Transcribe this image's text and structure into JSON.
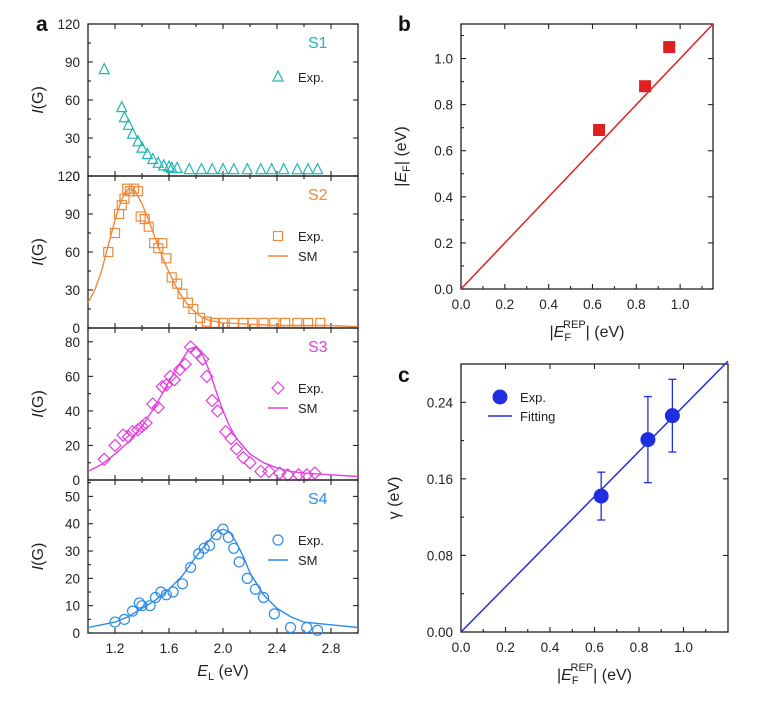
{
  "chart_data": [
    {
      "id": "a",
      "type": "scatter",
      "panel_label": "a",
      "xlabel": {
        "main": "E",
        "sub": "L",
        "unit": " (eV)"
      },
      "xlim": [
        1.0,
        3.0
      ],
      "xticks": [
        "1.2",
        "1.6",
        "2.0",
        "2.4",
        "2.8"
      ],
      "subplots": [
        {
          "name": "S1",
          "color": "#1fb6b6",
          "marker": "triangle",
          "ylabel": {
            "main": "I",
            "unit": "(G)"
          },
          "ylim": [
            0,
            120
          ],
          "yticks": [
            "0",
            "30",
            "60",
            "90",
            "120"
          ],
          "legend": [
            "Exp."
          ],
          "points": [
            [
              1.12,
              84
            ],
            [
              1.25,
              54
            ],
            [
              1.27,
              46
            ],
            [
              1.3,
              40
            ],
            [
              1.33,
              33
            ],
            [
              1.37,
              27
            ],
            [
              1.4,
              22
            ],
            [
              1.44,
              17
            ],
            [
              1.48,
              13
            ],
            [
              1.52,
              10
            ],
            [
              1.56,
              8
            ],
            [
              1.6,
              7
            ],
            [
              1.62,
              6
            ],
            [
              1.66,
              6
            ],
            [
              1.75,
              5
            ],
            [
              1.84,
              5
            ],
            [
              1.92,
              5
            ],
            [
              2.0,
              5
            ],
            [
              2.08,
              5
            ],
            [
              2.18,
              5
            ],
            [
              2.28,
              5
            ],
            [
              2.36,
              5
            ],
            [
              2.45,
              5
            ],
            [
              2.55,
              5
            ],
            [
              2.63,
              5
            ],
            [
              2.7,
              5
            ]
          ],
          "curve": []
        },
        {
          "name": "S2",
          "color": "#f08a3c",
          "marker": "square",
          "ylabel": {
            "main": "I",
            "unit": "(G)"
          },
          "ylim": [
            0,
            120
          ],
          "yticks": [
            "0",
            "30",
            "60",
            "90",
            "120"
          ],
          "legend": [
            "Exp.",
            "SM"
          ],
          "points": [
            [
              1.15,
              60
            ],
            [
              1.2,
              75
            ],
            [
              1.23,
              90
            ],
            [
              1.25,
              97
            ],
            [
              1.27,
              102
            ],
            [
              1.29,
              110
            ],
            [
              1.31,
              108
            ],
            [
              1.34,
              110
            ],
            [
              1.37,
              108
            ],
            [
              1.39,
              88
            ],
            [
              1.42,
              86
            ],
            [
              1.45,
              80
            ],
            [
              1.49,
              67
            ],
            [
              1.52,
              63
            ],
            [
              1.55,
              67
            ],
            [
              1.58,
              55
            ],
            [
              1.62,
              40
            ],
            [
              1.66,
              35
            ],
            [
              1.7,
              27
            ],
            [
              1.74,
              20
            ],
            [
              1.78,
              15
            ],
            [
              1.83,
              8
            ],
            [
              1.88,
              5
            ],
            [
              1.94,
              4
            ],
            [
              2.0,
              4
            ],
            [
              2.08,
              4
            ],
            [
              2.15,
              4
            ],
            [
              2.22,
              4
            ],
            [
              2.3,
              4
            ],
            [
              2.38,
              4
            ],
            [
              2.46,
              4
            ],
            [
              2.55,
              4
            ],
            [
              2.63,
              4
            ],
            [
              2.72,
              4
            ]
          ],
          "curve": [
            [
              1.0,
              20
            ],
            [
              1.05,
              30
            ],
            [
              1.1,
              45
            ],
            [
              1.15,
              65
            ],
            [
              1.2,
              85
            ],
            [
              1.25,
              102
            ],
            [
              1.3,
              110
            ],
            [
              1.35,
              108
            ],
            [
              1.4,
              98
            ],
            [
              1.45,
              85
            ],
            [
              1.5,
              70
            ],
            [
              1.55,
              56
            ],
            [
              1.6,
              44
            ],
            [
              1.65,
              33
            ],
            [
              1.7,
              24
            ],
            [
              1.75,
              17
            ],
            [
              1.8,
              12
            ],
            [
              1.85,
              8
            ],
            [
              1.9,
              6
            ],
            [
              2.0,
              4
            ],
            [
              2.2,
              3
            ],
            [
              2.4,
              2
            ],
            [
              2.6,
              2
            ],
            [
              2.8,
              2
            ],
            [
              3.0,
              1
            ]
          ]
        },
        {
          "name": "S3",
          "color": "#e23fe0",
          "marker": "diamond",
          "ylabel": {
            "main": "I",
            "unit": "(G)"
          },
          "ylim": [
            0,
            88
          ],
          "yticks": [
            "0",
            "20",
            "40",
            "60",
            "80"
          ],
          "legend": [
            "Exp.",
            "SM"
          ],
          "points": [
            [
              1.12,
              12
            ],
            [
              1.2,
              20
            ],
            [
              1.26,
              26
            ],
            [
              1.3,
              25
            ],
            [
              1.33,
              28
            ],
            [
              1.37,
              29
            ],
            [
              1.4,
              31
            ],
            [
              1.43,
              33
            ],
            [
              1.48,
              44
            ],
            [
              1.52,
              42
            ],
            [
              1.55,
              54
            ],
            [
              1.58,
              55
            ],
            [
              1.61,
              60
            ],
            [
              1.64,
              58
            ],
            [
              1.68,
              64
            ],
            [
              1.72,
              67
            ],
            [
              1.76,
              77
            ],
            [
              1.8,
              74
            ],
            [
              1.85,
              70
            ],
            [
              1.88,
              60
            ],
            [
              1.92,
              46
            ],
            [
              1.96,
              40
            ],
            [
              2.02,
              28
            ],
            [
              2.06,
              24
            ],
            [
              2.1,
              18
            ],
            [
              2.15,
              13
            ],
            [
              2.2,
              10
            ],
            [
              2.28,
              5
            ],
            [
              2.34,
              5
            ],
            [
              2.42,
              4
            ],
            [
              2.48,
              3
            ],
            [
              2.56,
              3
            ],
            [
              2.62,
              3
            ],
            [
              2.68,
              4
            ]
          ],
          "curve": [
            [
              1.0,
              5
            ],
            [
              1.1,
              9
            ],
            [
              1.2,
              15
            ],
            [
              1.3,
              22
            ],
            [
              1.4,
              31
            ],
            [
              1.5,
              43
            ],
            [
              1.6,
              57
            ],
            [
              1.7,
              70
            ],
            [
              1.75,
              76
            ],
            [
              1.8,
              77
            ],
            [
              1.85,
              72
            ],
            [
              1.9,
              63
            ],
            [
              1.95,
              51
            ],
            [
              2.0,
              40
            ],
            [
              2.05,
              31
            ],
            [
              2.1,
              24
            ],
            [
              2.2,
              15
            ],
            [
              2.3,
              10
            ],
            [
              2.4,
              7
            ],
            [
              2.5,
              5
            ],
            [
              2.6,
              4
            ],
            [
              2.8,
              3
            ],
            [
              3.0,
              2
            ]
          ]
        },
        {
          "name": "S4",
          "color": "#2f8cea",
          "marker": "circle",
          "ylabel": {
            "main": "I",
            "unit": "(G)"
          },
          "ylim": [
            0,
            56
          ],
          "yticks": [
            "0",
            "10",
            "20",
            "30",
            "40",
            "50"
          ],
          "legend": [
            "Exp.",
            "SM"
          ],
          "points": [
            [
              1.2,
              4
            ],
            [
              1.27,
              5
            ],
            [
              1.33,
              8
            ],
            [
              1.38,
              11
            ],
            [
              1.4,
              10
            ],
            [
              1.46,
              10
            ],
            [
              1.5,
              13
            ],
            [
              1.54,
              15
            ],
            [
              1.58,
              14
            ],
            [
              1.63,
              15
            ],
            [
              1.7,
              18
            ],
            [
              1.76,
              24
            ],
            [
              1.82,
              29
            ],
            [
              1.86,
              31
            ],
            [
              1.9,
              32
            ],
            [
              1.95,
              36
            ],
            [
              2.0,
              38
            ],
            [
              2.04,
              35
            ],
            [
              2.08,
              31
            ],
            [
              2.12,
              26
            ],
            [
              2.18,
              20
            ],
            [
              2.24,
              16
            ],
            [
              2.3,
              13
            ],
            [
              2.38,
              7
            ],
            [
              2.5,
              2
            ],
            [
              2.62,
              2
            ],
            [
              2.7,
              1
            ]
          ],
          "curve": [
            [
              1.0,
              2
            ],
            [
              1.1,
              3
            ],
            [
              1.2,
              4
            ],
            [
              1.3,
              6
            ],
            [
              1.4,
              9
            ],
            [
              1.5,
              12
            ],
            [
              1.6,
              16
            ],
            [
              1.7,
              21
            ],
            [
              1.8,
              28
            ],
            [
              1.9,
              34
            ],
            [
              1.95,
              37
            ],
            [
              2.0,
              38
            ],
            [
              2.05,
              37
            ],
            [
              2.1,
              33
            ],
            [
              2.15,
              28
            ],
            [
              2.2,
              22
            ],
            [
              2.3,
              14
            ],
            [
              2.4,
              9
            ],
            [
              2.5,
              6
            ],
            [
              2.6,
              4
            ],
            [
              2.8,
              3
            ],
            [
              3.0,
              2
            ]
          ]
        }
      ]
    },
    {
      "id": "b",
      "type": "scatter",
      "panel_label": "b",
      "xlabel": {
        "pre": "|E",
        "sub": "F",
        "sup": "REP",
        "post": "| (eV)"
      },
      "ylabel": {
        "pre": "|E",
        "sub": "F",
        "post": "| (eV)"
      },
      "xlim": [
        0,
        1.15
      ],
      "ylim": [
        0,
        1.15
      ],
      "xticks": [
        "0.0",
        "0.2",
        "0.4",
        "0.6",
        "0.8",
        "1.0"
      ],
      "yticks": [
        "0.0",
        "0.2",
        "0.4",
        "0.6",
        "0.8",
        "1.0"
      ],
      "color": "#e02020",
      "points": [
        [
          0.63,
          0.69
        ],
        [
          0.84,
          0.88
        ],
        [
          0.95,
          1.05
        ]
      ],
      "line": [
        [
          0,
          0
        ],
        [
          1.15,
          1.15
        ]
      ]
    },
    {
      "id": "c",
      "type": "scatter",
      "panel_label": "c",
      "xlabel": {
        "pre": "|E",
        "sub": "F",
        "sup": "REP",
        "post": "| (eV)"
      },
      "ylabel": {
        "pre": "γ (eV)"
      },
      "xlim": [
        0,
        1.2
      ],
      "ylim": [
        0,
        0.28
      ],
      "xticks": [
        "0.0",
        "0.2",
        "0.4",
        "0.6",
        "0.8",
        "1.0"
      ],
      "yticks": [
        "0.00",
        "0.08",
        "0.16",
        "0.24"
      ],
      "color": "#1f2fe0",
      "legend": [
        "Exp.",
        "Fitting"
      ],
      "points": [
        [
          0.63,
          0.142,
          0.025
        ],
        [
          0.84,
          0.201,
          0.045
        ],
        [
          0.95,
          0.226,
          0.038
        ]
      ],
      "line": [
        [
          0,
          0
        ],
        [
          1.2,
          0.283
        ]
      ]
    }
  ]
}
